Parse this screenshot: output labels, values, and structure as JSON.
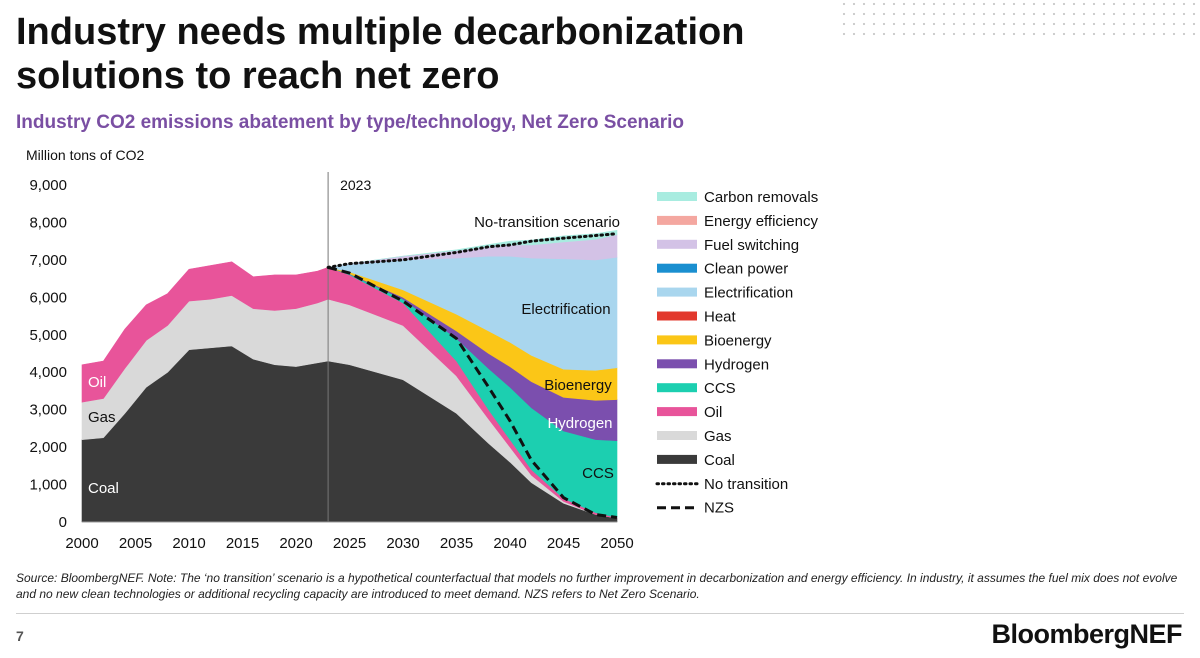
{
  "title": "Industry needs multiple decarbonization solutions to reach net zero",
  "subtitle": "Industry CO2 emissions abatement by type/technology, Net Zero Scenario",
  "footer": {
    "source": "Source: BloombergNEF. Note: The ‘no transition’ scenario is a hypothetical counterfactual that models no further improvement in decarbonization and energy efficiency. In industry, it assumes the fuel mix does not evolve and no new clean technologies or additional recycling capacity are introduced to meet demand. NZS refers to Net Zero Scenario.",
    "page_number": "7",
    "logo": "BloombergNEF"
  },
  "chart_data": {
    "type": "area",
    "ylabel": "Million tons of CO2",
    "xlim": [
      2000,
      2050
    ],
    "ylim": [
      0,
      9000
    ],
    "x_ticks": [
      2000,
      2005,
      2010,
      2015,
      2020,
      2025,
      2030,
      2035,
      2040,
      2045,
      2050
    ],
    "y_ticks": [
      0,
      1000,
      2000,
      3000,
      4000,
      5000,
      6000,
      7000,
      8000,
      9000
    ],
    "grid": false,
    "legend_position": "right",
    "reference_line": {
      "x": 2023,
      "label": "2023"
    },
    "historical": {
      "x": [
        2000,
        2002,
        2004,
        2006,
        2008,
        2010,
        2012,
        2014,
        2016,
        2018,
        2020,
        2022,
        2023
      ],
      "series": [
        {
          "name": "Coal",
          "color": "#3a3a3a",
          "values": [
            2200,
            2250,
            2900,
            3600,
            4000,
            4600,
            4650,
            4700,
            4350,
            4200,
            4150,
            4250,
            4300
          ]
        },
        {
          "name": "Gas",
          "color": "#d9d9d9",
          "values": [
            1000,
            1050,
            1200,
            1250,
            1250,
            1300,
            1300,
            1350,
            1350,
            1450,
            1550,
            1600,
            1650
          ]
        },
        {
          "name": "Oil",
          "color": "#e8549a",
          "values": [
            1000,
            1000,
            1050,
            950,
            850,
            850,
            900,
            900,
            850,
            950,
            900,
            850,
            850
          ]
        }
      ]
    },
    "projection": {
      "x": [
        2023,
        2025,
        2030,
        2035,
        2038,
        2040,
        2042,
        2045,
        2048,
        2050
      ],
      "series": [
        {
          "name": "Coal",
          "color": "#3a3a3a",
          "values": [
            4300,
            4200,
            3800,
            2900,
            2100,
            1600,
            1050,
            500,
            200,
            100
          ]
        },
        {
          "name": "Gas",
          "color": "#d9d9d9",
          "values": [
            1650,
            1600,
            1450,
            1000,
            650,
            400,
            200,
            50,
            0,
            0
          ]
        },
        {
          "name": "Oil",
          "color": "#e8549a",
          "values": [
            850,
            800,
            600,
            400,
            250,
            200,
            150,
            80,
            50,
            20
          ]
        },
        {
          "name": "CCS",
          "color": "#1ccfb0",
          "values": [
            0,
            20,
            100,
            600,
            1100,
            1400,
            1650,
            1800,
            1950,
            2050
          ]
        },
        {
          "name": "Hydrogen",
          "color": "#7b4fae",
          "values": [
            0,
            10,
            50,
            200,
            400,
            550,
            700,
            900,
            1050,
            1100
          ]
        },
        {
          "name": "Bioenergy",
          "color": "#fbc617",
          "values": [
            0,
            50,
            200,
            450,
            600,
            650,
            700,
            750,
            800,
            850
          ]
        },
        {
          "name": "Heat",
          "color": "#e2382c",
          "values": [
            0,
            0,
            0,
            0,
            0,
            0,
            0,
            0,
            0,
            0
          ]
        },
        {
          "name": "Electrification",
          "color": "#a9d6ee",
          "values": [
            0,
            200,
            800,
            1500,
            2000,
            2300,
            2600,
            2950,
            2950,
            2950
          ]
        },
        {
          "name": "Clean power",
          "color": "#1a8fd0",
          "values": [
            0,
            0,
            0,
            0,
            0,
            0,
            0,
            0,
            0,
            0
          ]
        },
        {
          "name": "Fuel switching",
          "color": "#d3c2e6",
          "values": [
            0,
            20,
            100,
            200,
            250,
            300,
            350,
            450,
            550,
            600
          ]
        },
        {
          "name": "Energy efficiency",
          "color": "#f4a7a0",
          "values": [
            0,
            0,
            0,
            0,
            0,
            0,
            0,
            0,
            0,
            0
          ]
        },
        {
          "name": "Carbon removals",
          "color": "#a8ece0",
          "values": [
            0,
            0,
            0,
            20,
            60,
            100,
            130,
            160,
            150,
            120
          ]
        }
      ],
      "no_transition": [
        6800,
        6900,
        7000,
        7200,
        7350,
        7400,
        7500,
        7580,
        7650,
        7700
      ],
      "nzs": [
        6800,
        6650,
        5900,
        4900,
        3600,
        2700,
        1650,
        650,
        200,
        120
      ]
    },
    "area_labels": [
      {
        "text": "Electrification",
        "color": "#111111"
      },
      {
        "text": "Bioenergy",
        "color": "#111111"
      },
      {
        "text": "Hydrogen",
        "color": "#ffffff"
      },
      {
        "text": "CCS",
        "color": "#111111"
      },
      {
        "text": "Oil",
        "color": "#ffffff"
      },
      {
        "text": "Gas",
        "color": "#111111"
      },
      {
        "text": "Coal",
        "color": "#ffffff"
      },
      {
        "text": "No-transition scenario",
        "color": "#111111"
      }
    ],
    "legend": [
      {
        "label": "Carbon removals",
        "color": "#a8ece0",
        "style": "box"
      },
      {
        "label": "Energy efficiency",
        "color": "#f4a7a0",
        "style": "box"
      },
      {
        "label": "Fuel switching",
        "color": "#d3c2e6",
        "style": "box"
      },
      {
        "label": "Clean power",
        "color": "#1a8fd0",
        "style": "box"
      },
      {
        "label": "Electrification",
        "color": "#a9d6ee",
        "style": "box"
      },
      {
        "label": "Heat",
        "color": "#e2382c",
        "style": "box"
      },
      {
        "label": "Bioenergy",
        "color": "#fbc617",
        "style": "box"
      },
      {
        "label": "Hydrogen",
        "color": "#7b4fae",
        "style": "box"
      },
      {
        "label": "CCS",
        "color": "#1ccfb0",
        "style": "box"
      },
      {
        "label": "Oil",
        "color": "#e8549a",
        "style": "box"
      },
      {
        "label": "Gas",
        "color": "#d9d9d9",
        "style": "box"
      },
      {
        "label": "Coal",
        "color": "#3a3a3a",
        "style": "box"
      },
      {
        "label": "No transition",
        "color": "#111111",
        "style": "dotted"
      },
      {
        "label": "NZS",
        "color": "#111111",
        "style": "dashed"
      }
    ]
  }
}
